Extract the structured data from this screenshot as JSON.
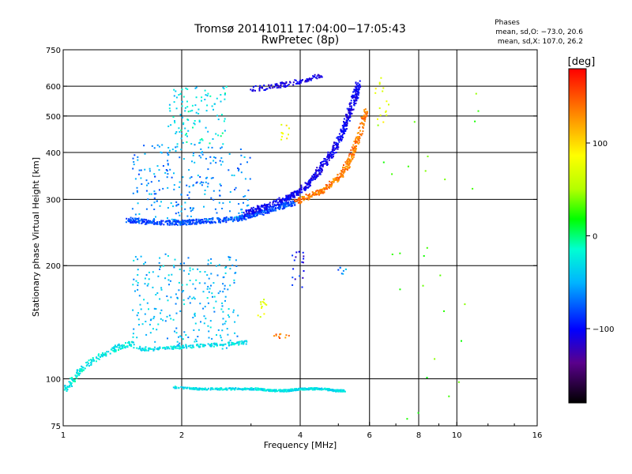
{
  "title_line1": "Tromsø 20141011 17:04:00−17:05:43",
  "title_line2": "RwPretec (8p)",
  "phases_header": "Phases",
  "phases_o": "mean, sd,O: −73.0, 20.6",
  "phases_x": "mean, sd,X: 107.0, 26.2",
  "colorbar_unit": "[deg]",
  "colors": {
    "background": "#ffffff",
    "axes": "#000000"
  },
  "chart_data": {
    "type": "scatter",
    "xlabel": "Frequency [MHz]",
    "ylabel": "Stationary phase Virtual Height [km]",
    "xscale": "log",
    "yscale": "log",
    "xlim": [
      1,
      16
    ],
    "ylim": [
      75,
      750
    ],
    "x_ticks": [
      1,
      2,
      4,
      6,
      8,
      10,
      16
    ],
    "x_tick_labels": [
      "1",
      "2",
      "4",
      "6",
      "8",
      "10",
      "16"
    ],
    "x_gridlines": [
      2,
      4,
      6,
      8,
      10
    ],
    "y_ticks": [
      75,
      100,
      200,
      300,
      400,
      500,
      600,
      750
    ],
    "y_tick_labels": [
      "75",
      "100",
      "200",
      "300",
      "400",
      "500",
      "600",
      "750"
    ],
    "y_gridlines": [
      100,
      200,
      300,
      400,
      500,
      600
    ],
    "colorbar": {
      "label": "[deg]",
      "range": [
        -180,
        180
      ],
      "ticks": [
        100,
        0,
        -100
      ],
      "tick_labels": [
        "100",
        "0",
        "−100"
      ],
      "colormap": "rainbow"
    },
    "series": [
      {
        "traces": [
          {
            "kind": "curve",
            "x": [
              1.45,
              1.6,
              1.8,
              2.0,
              2.2,
              2.5,
              2.8,
              3.0,
              3.3,
              3.6,
              3.9
            ],
            "y": [
              265,
              262,
              260,
              260,
              262,
              264,
              267,
              272,
              280,
              288,
              295
            ],
            "phase": -80,
            "jitter": 0.03,
            "dens": 55
          },
          {
            "kind": "curve",
            "x": [
              2.9,
              3.2,
              3.6,
              3.9,
              4.2,
              4.5,
              4.8,
              5.1,
              5.3,
              5.5,
              5.6
            ],
            "y": [
              275,
              285,
              298,
              310,
              330,
              360,
              395,
              445,
              500,
              560,
              610
            ],
            "phase": -105,
            "jitter": 0.035,
            "dens": 60
          },
          {
            "kind": "curve",
            "x": [
              3.9,
              4.2,
              4.5,
              4.8,
              5.1,
              5.3,
              5.5,
              5.7,
              5.9
            ],
            "y": [
              295,
              305,
              315,
              330,
              350,
              375,
              410,
              460,
              520
            ],
            "phase": 145,
            "jitter": 0.03,
            "dens": 40
          },
          {
            "kind": "curve",
            "x": [
              3.0,
              3.3,
              3.6,
              3.9,
              4.2,
              4.5
            ],
            "y": [
              590,
              595,
              605,
              615,
              625,
              640
            ],
            "phase": -110,
            "jitter": 0.03,
            "dens": 22
          },
          {
            "kind": "cloud",
            "x": [
              1.5,
              3.0
            ],
            "y": [
              265,
              420
            ],
            "phase": -60,
            "n": 230
          },
          {
            "kind": "cloud",
            "x": [
              1.85,
              2.6
            ],
            "y": [
              420,
              600
            ],
            "phase": -30,
            "n": 110
          },
          {
            "kind": "cloud",
            "x": [
              1.5,
              2.8
            ],
            "y": [
              120,
              215
            ],
            "phase": -45,
            "n": 260
          },
          {
            "kind": "curve",
            "x": [
              1.5,
              1.7,
              1.9,
              2.1,
              2.4,
              2.7,
              2.9
            ],
            "y": [
              120,
              120,
              121,
              122,
              123,
              124,
              125
            ],
            "phase": -30,
            "jitter": 0.02,
            "dens": 30
          },
          {
            "kind": "curve",
            "x": [
              1.0,
              1.05,
              1.1,
              1.2,
              1.3,
              1.4,
              1.5
            ],
            "y": [
              93,
              98,
              105,
              112,
              118,
              122,
              124
            ],
            "phase": -25,
            "jitter": 0.03,
            "dens": 30
          },
          {
            "kind": "curve",
            "x": [
              1.9,
              2.2,
              2.5,
              2.8,
              3.1,
              3.4,
              3.7,
              4.0,
              4.3,
              4.6,
              4.9,
              5.2
            ],
            "y": [
              95,
              94,
              94,
              94,
              94,
              93,
              93,
              94,
              94,
              94,
              93,
              93
            ],
            "phase": -30,
            "jitter": 0.012,
            "dens": 42
          },
          {
            "kind": "cloud",
            "x": [
              3.1,
              3.3
            ],
            "y": [
              145,
              165
            ],
            "phase": 80,
            "n": 12
          },
          {
            "kind": "cloud",
            "x": [
              3.4,
              3.75
            ],
            "y": [
              128,
              132
            ],
            "phase": 145,
            "n": 10
          },
          {
            "kind": "cloud",
            "x": [
              3.55,
              3.75
            ],
            "y": [
              430,
              480
            ],
            "phase": 95,
            "n": 10
          },
          {
            "kind": "cloud",
            "x": [
              3.8,
              4.1
            ],
            "y": [
              175,
              230
            ],
            "phase": -100,
            "n": 18
          },
          {
            "kind": "cloud",
            "x": [
              4.8,
              5.3
            ],
            "y": [
              190,
              200
            ],
            "phase": -60,
            "n": 8
          },
          {
            "kind": "cloud",
            "x": [
              6.2,
              6.8
            ],
            "y": [
              480,
              650
            ],
            "phase": 90,
            "n": 16
          },
          {
            "kind": "cloud",
            "x": [
              6.0,
              11.5
            ],
            "y": [
              75,
              580
            ],
            "phase": 20,
            "n": 28
          }
        ]
      }
    ]
  }
}
